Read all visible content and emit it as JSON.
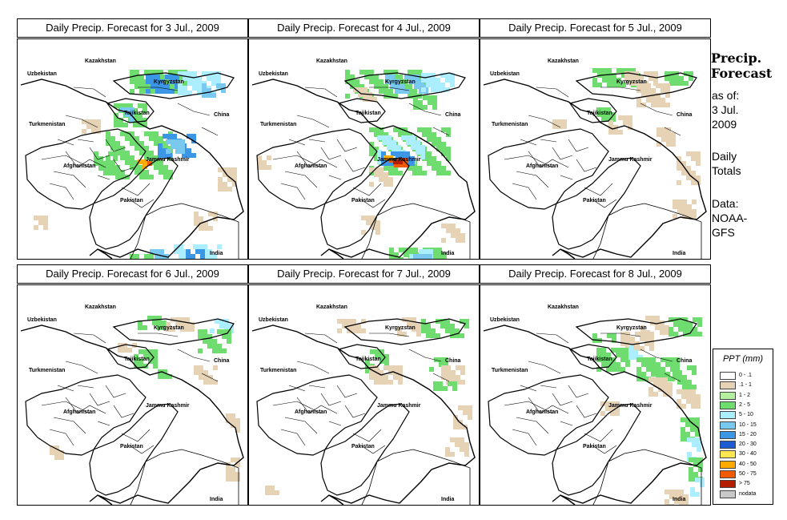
{
  "panels": [
    {
      "title": "Daily Precip. Forecast for  3 Jul., 2009"
    },
    {
      "title": "Daily Precip. Forecast for  4 Jul., 2009"
    },
    {
      "title": "Daily Precip. Forecast for  5 Jul., 2009"
    },
    {
      "title": "Daily Precip. Forecast for  6 Jul., 2009"
    },
    {
      "title": "Daily Precip. Forecast for  7 Jul., 2009"
    },
    {
      "title": "Daily Precip. Forecast for  8 Jul., 2009"
    }
  ],
  "map_labels": {
    "uzbekistan": "Uzbekistan",
    "kazakhstan": "Kazakhstan",
    "kyrgyzstan": "Kyrgyzstan",
    "tajikistan": "Tajikistan",
    "china": "China",
    "turkmenistan": "Turkmenistan",
    "afghanistan": "Afghanistan",
    "jammu": "Jammu Kashmir",
    "pakistan": "Pakistan",
    "india": "India"
  },
  "side": {
    "title_line1": "Precip.",
    "title_line2": "Forecast",
    "asof1": "as of:",
    "asof2": "3 Jul.",
    "asof3": "2009",
    "daily1": "Daily",
    "daily2": "Totals",
    "data1": "Data:",
    "data2": "NOAA-",
    "data3": "GFS"
  },
  "legend": {
    "title": "PPT (mm)",
    "items": [
      {
        "label": "0 - .1",
        "color": "#ffffff"
      },
      {
        "label": ".1 - 1",
        "color": "#e6d2b4"
      },
      {
        "label": "1 - 2",
        "color": "#b4f0a0"
      },
      {
        "label": "2 - 5",
        "color": "#6edc6e"
      },
      {
        "label": "5 - 10",
        "color": "#aaeeff"
      },
      {
        "label": "10 - 15",
        "color": "#78c8f0"
      },
      {
        "label": "15 - 20",
        "color": "#3c96e6"
      },
      {
        "label": "20 - 30",
        "color": "#1e5ad2"
      },
      {
        "label": "30 - 40",
        "color": "#ffe650"
      },
      {
        "label": "40 - 50",
        "color": "#ffaa00"
      },
      {
        "label": "50 - 75",
        "color": "#f05a00"
      },
      {
        "label": "> 75",
        "color": "#b41e00"
      },
      {
        "label": "nodata",
        "color": "#c8c8c8"
      }
    ]
  },
  "colors": {
    "tan": "#e6d2b4",
    "lightgreen": "#b4f0a0",
    "green": "#6edc6e",
    "lightblue": "#aaeeff",
    "blue": "#78c8f0",
    "midblue": "#3c96e6",
    "darkblue": "#1e5ad2",
    "yellow": "#ffe650",
    "orange": "#ffaa00",
    "red": "#f05a00",
    "darkred": "#b41e00"
  }
}
